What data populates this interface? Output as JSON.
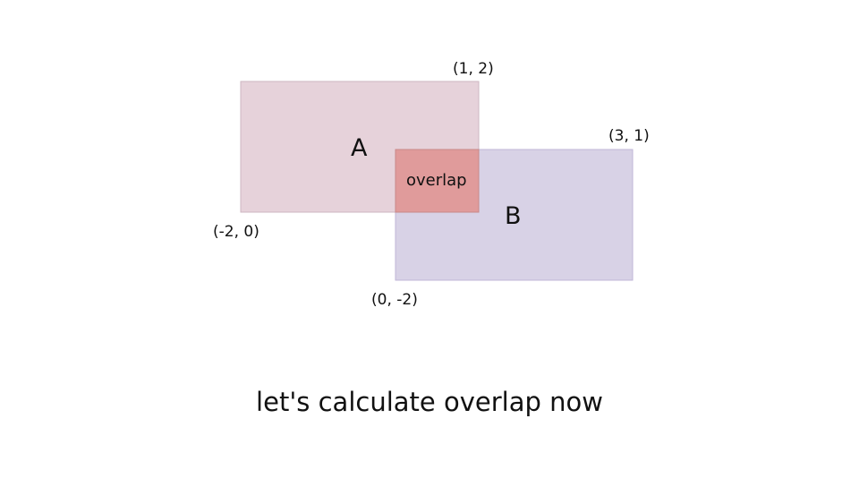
{
  "rectangles": {
    "a": {
      "label": "A",
      "bottom_left": "(-2, 0)",
      "top_right": "(1, 2)",
      "color": "#e6d2da"
    },
    "b": {
      "label": "B",
      "bottom_left": "(0, -2)",
      "top_right": "(3, 1)",
      "color": "#d8d2e6"
    }
  },
  "overlap": {
    "label": "overlap",
    "color": "#e09b9b"
  },
  "caption": "let's calculate overlap now"
}
